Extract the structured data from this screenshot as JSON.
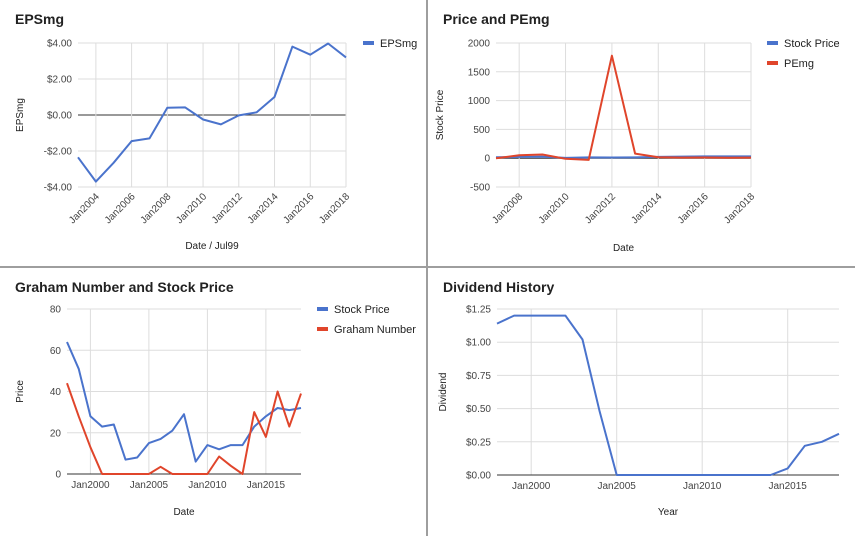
{
  "chart_data": [
    {
      "type": "line",
      "title": "EPSmg",
      "xlabel": "Date / Jul99",
      "ylabel": "EPSmg",
      "x": [
        2003,
        2004,
        2005,
        2006,
        2007,
        2008,
        2009,
        2010,
        2011,
        2012,
        2013,
        2014,
        2015,
        2016,
        2017,
        2018
      ],
      "series": [
        {
          "name": "EPSmg",
          "color": "#4a73cc",
          "values": [
            -2.35,
            -3.7,
            -2.65,
            -1.45,
            -1.3,
            0.4,
            0.42,
            -0.25,
            -0.52,
            -0.02,
            0.15,
            1.0,
            3.8,
            3.35,
            3.97,
            3.2
          ]
        }
      ],
      "xlim": [
        2003,
        2018
      ],
      "ylim": [
        -4,
        4
      ],
      "xticks": [
        2004,
        2006,
        2008,
        2010,
        2012,
        2014,
        2016,
        2018
      ],
      "xtick_labels": [
        "Jan2004",
        "Jan2006",
        "Jan2008",
        "Jan2010",
        "Jan2012",
        "Jan2014",
        "Jan2016",
        "Jan2018"
      ],
      "yticks": [
        -4,
        -2,
        0,
        2,
        4
      ],
      "ytick_labels": [
        "-$4.00",
        "-$2.00",
        "$0.00",
        "$2.00",
        "$4.00"
      ],
      "grid": true,
      "legend": "top-right"
    },
    {
      "type": "line",
      "title": "Price and PEmg",
      "xlabel": "Date",
      "ylabel": "Stock Price",
      "x": [
        2007,
        2008,
        2009,
        2010,
        2011,
        2012,
        2013,
        2014,
        2015,
        2016,
        2017,
        2018
      ],
      "series": [
        {
          "name": "Stock Price",
          "color": "#4a73cc",
          "values": [
            15,
            22,
            28,
            5,
            14,
            12,
            14,
            22,
            28,
            32,
            31,
            32
          ]
        },
        {
          "name": "PEmg",
          "color": "#e0452b",
          "values": [
            0,
            50,
            65,
            -10,
            -30,
            1780,
            80,
            15,
            10,
            12,
            8,
            10
          ]
        }
      ],
      "xlim": [
        2007,
        2018
      ],
      "ylim": [
        -500,
        2000
      ],
      "xticks": [
        2008,
        2010,
        2012,
        2014,
        2016,
        2018
      ],
      "xtick_labels": [
        "Jan2008",
        "Jan2010",
        "Jan2012",
        "Jan2014",
        "Jan2016",
        "Jan2018"
      ],
      "yticks": [
        -500,
        0,
        500,
        1000,
        1500,
        2000
      ],
      "ytick_labels": [
        "-500",
        "0",
        "500",
        "1000",
        "1500",
        "2000"
      ],
      "grid": true,
      "legend": "top-right"
    },
    {
      "type": "line",
      "title": "Graham Number and Stock Price",
      "xlabel": "Date",
      "ylabel": "Price",
      "x": [
        1998,
        1999,
        2000,
        2001,
        2002,
        2003,
        2004,
        2005,
        2006,
        2007,
        2008,
        2009,
        2010,
        2011,
        2012,
        2013,
        2014,
        2015,
        2016,
        2017,
        2018
      ],
      "series": [
        {
          "name": "Stock Price",
          "color": "#4a73cc",
          "values": [
            64,
            51,
            28,
            23,
            24,
            7,
            8,
            15,
            17,
            21,
            29,
            6,
            14,
            12,
            14,
            14,
            23,
            28,
            32,
            31,
            32
          ]
        },
        {
          "name": "Graham Number",
          "color": "#e0452b",
          "values": [
            44,
            28,
            13,
            0,
            0,
            0,
            0,
            0,
            3.5,
            0,
            0,
            0,
            0,
            8.5,
            4,
            0,
            30,
            18,
            40,
            23,
            39
          ]
        }
      ],
      "xlim": [
        1998,
        2018
      ],
      "ylim": [
        0,
        80
      ],
      "xticks": [
        2000,
        2005,
        2010,
        2015
      ],
      "xtick_labels": [
        "Jan2000",
        "Jan2005",
        "Jan2010",
        "Jan2015"
      ],
      "yticks": [
        0,
        20,
        40,
        60,
        80
      ],
      "ytick_labels": [
        "0",
        "20",
        "40",
        "60",
        "80"
      ],
      "grid": true,
      "legend": "top-right"
    },
    {
      "type": "line",
      "title": "Dividend History",
      "xlabel": "Year",
      "ylabel": "Dividend",
      "x": [
        1998,
        1999,
        2000,
        2001,
        2002,
        2003,
        2004,
        2005,
        2006,
        2007,
        2008,
        2009,
        2010,
        2011,
        2012,
        2013,
        2014,
        2015,
        2016,
        2017,
        2018
      ],
      "series": [
        {
          "name": "Dividend",
          "color": "#4a73cc",
          "values": [
            1.14,
            1.2,
            1.2,
            1.2,
            1.2,
            1.02,
            0.48,
            0,
            0,
            0,
            0,
            0,
            0,
            0,
            0,
            0,
            0,
            0.05,
            0.22,
            0.25,
            0.31
          ]
        }
      ],
      "xlim": [
        1998,
        2018
      ],
      "ylim": [
        0,
        1.25
      ],
      "xticks": [
        2000,
        2005,
        2010,
        2015
      ],
      "xtick_labels": [
        "Jan2000",
        "Jan2005",
        "Jan2010",
        "Jan2015"
      ],
      "yticks": [
        0,
        0.25,
        0.5,
        0.75,
        1.0,
        1.25
      ],
      "ytick_labels": [
        "$0.00",
        "$0.25",
        "$0.50",
        "$0.75",
        "$1.00",
        "$1.25"
      ],
      "grid": true,
      "legend": "none"
    }
  ]
}
